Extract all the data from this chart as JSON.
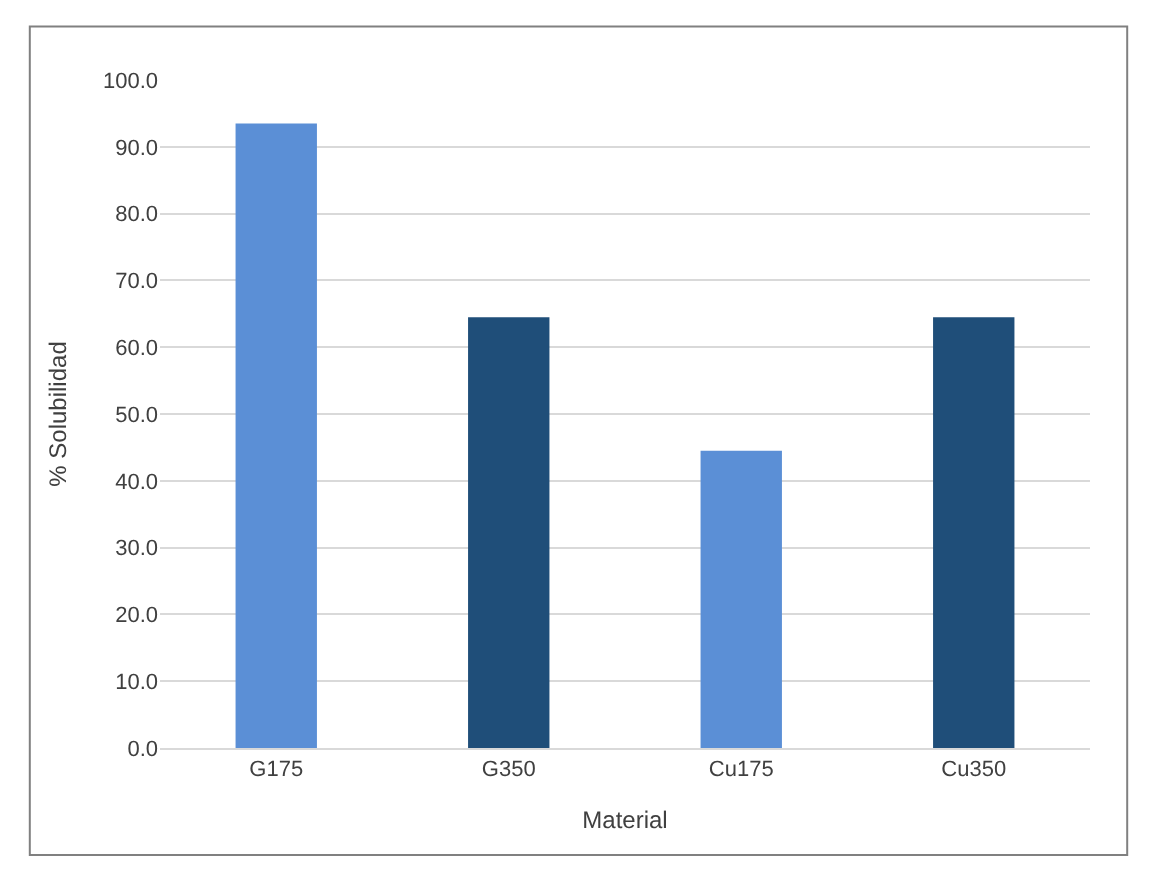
{
  "chart_data": {
    "type": "bar",
    "xlabel": "Material",
    "ylabel": "% Solubilidad",
    "categories": [
      "G175",
      "G350",
      "Cu175",
      "Cu350"
    ],
    "values": [
      93.5,
      64.5,
      44.5,
      64.5
    ],
    "colors": [
      "#5b8fd6",
      "#1f4e79",
      "#5b8fd6",
      "#1f4e79"
    ],
    "ylim": [
      0,
      100
    ],
    "yticks": [
      {
        "value": 0,
        "label": "0.0"
      },
      {
        "value": 10,
        "label": "10.0"
      },
      {
        "value": 20,
        "label": "20.0"
      },
      {
        "value": 30,
        "label": "30.0"
      },
      {
        "value": 40,
        "label": "40.0"
      },
      {
        "value": 50,
        "label": "50.0"
      },
      {
        "value": 60,
        "label": "60.0"
      },
      {
        "value": 70,
        "label": "70.0"
      },
      {
        "value": 80,
        "label": "80.0"
      },
      {
        "value": 90,
        "label": "90.0"
      },
      {
        "value": 100,
        "label": "100.0"
      }
    ],
    "grid": "y"
  }
}
